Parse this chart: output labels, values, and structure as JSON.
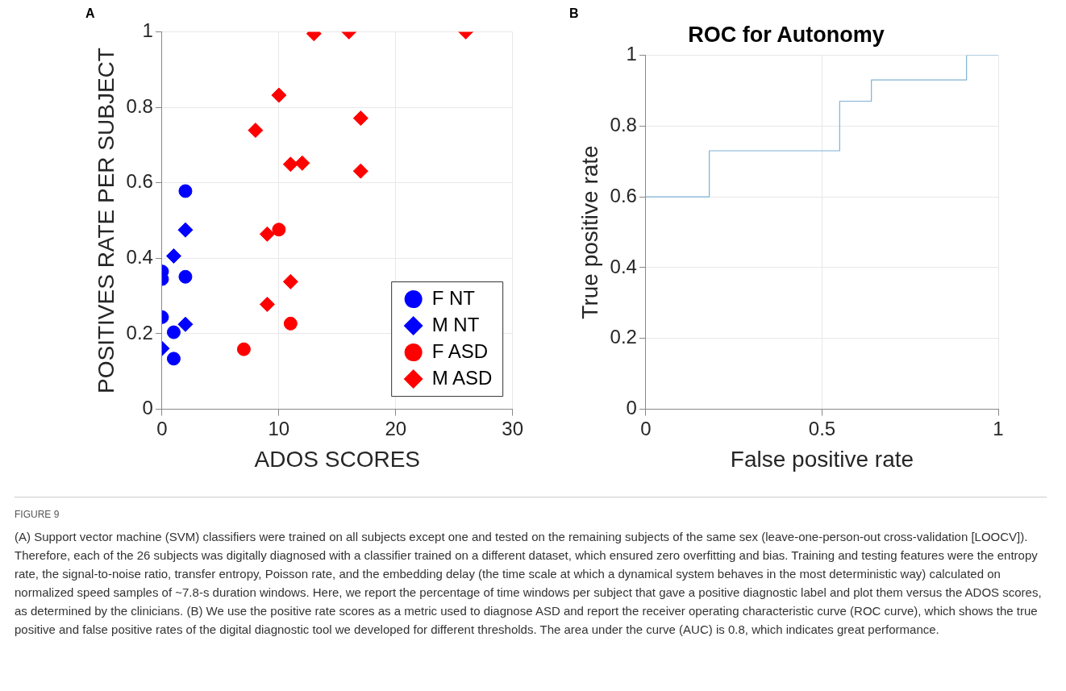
{
  "chart_data": [
    {
      "type": "scatter",
      "xlabel": "ADOS SCORES",
      "ylabel": "POSITIVES RATE PER SUBJECT",
      "annotations": [
        "A"
      ],
      "xlim": [
        0,
        30
      ],
      "xticks": [
        0,
        10,
        20,
        30
      ],
      "ylim": [
        0,
        1
      ],
      "yticks": [
        0,
        0.2,
        0.4,
        0.6,
        0.8,
        1
      ],
      "grid": true,
      "legend": "bottom right",
      "series": [
        {
          "name": "F NT",
          "color": "#0000ff",
          "marker": "circle",
          "x": [
            2,
            0,
            0,
            2,
            0,
            1,
            1
          ],
          "values": [
            0.578,
            0.365,
            0.345,
            0.351,
            0.244,
            0.204,
            0.134
          ]
        },
        {
          "name": "M NT",
          "color": "#0000ff",
          "marker": "diamond",
          "x": [
            2,
            1,
            2,
            0
          ],
          "values": [
            0.475,
            0.406,
            0.225,
            0.161
          ]
        },
        {
          "name": "F ASD",
          "color": "#ff0000",
          "marker": "circle",
          "x": [
            10,
            11,
            7
          ],
          "values": [
            0.476,
            0.227,
            0.159
          ]
        },
        {
          "name": "M ASD",
          "color": "#ff0000",
          "marker": "diamond",
          "x": [
            13,
            16,
            26,
            10,
            8,
            17,
            11,
            12,
            17,
            9,
            11,
            9
          ],
          "values": [
            0.995,
            1,
            1,
            0.832,
            0.739,
            0.771,
            0.649,
            0.652,
            0.631,
            0.464,
            0.338,
            0.278
          ]
        }
      ]
    },
    {
      "type": "step",
      "title": "ROC for Autonomy",
      "xlabel": "False positive rate",
      "ylabel": "True positive rate",
      "annotations": [
        "B",
        "FIGURE 9",
        "(A) Support vector machine (SVM) classifiers were trained on all subjects except one and tested on the remaining subjects of the same sex (leave-one-person-out cross-validation [LOOCV]). Therefore, each of the 26 subjects was digitally diagnosed with a classifier trained on a different dataset, which ensured zero overfitting and bias. Training and testing features were the entropy rate, the signal-to-noise ratio, transfer entropy, Poisson rate, and the embedding delay (the time scale at which a dynamical system behaves in the most deterministic way) calculated on normalized speed samples of ~7.8-s duration windows. Here, we report the percentage of time windows per subject that gave a positive diagnostic label and plot them versus the ADOS scores, as determined by the clinicians. (B) We use the positive rate scores as a metric used to diagnose ASD and report the receiver operating characteristic curve (ROC curve), which shows the true positive and false positive rates of the digital diagnostic tool we developed for different thresholds. The area under the curve (AUC) is 0.8, which indicates great performance."
      ],
      "xlim": [
        0,
        1
      ],
      "xticks": [
        0,
        0.5,
        1
      ],
      "ylim": [
        0,
        1
      ],
      "yticks": [
        0,
        0.2,
        0.4,
        0.6,
        0.8,
        1
      ],
      "grid": true,
      "series": [
        {
          "color": "#7fb2d5",
          "x": [
            0,
            0.18,
            0.55,
            0.64,
            0.91,
            1
          ],
          "values": [
            0.6,
            0.73,
            0.87,
            0.93,
            1,
            1
          ]
        }
      ]
    }
  ]
}
